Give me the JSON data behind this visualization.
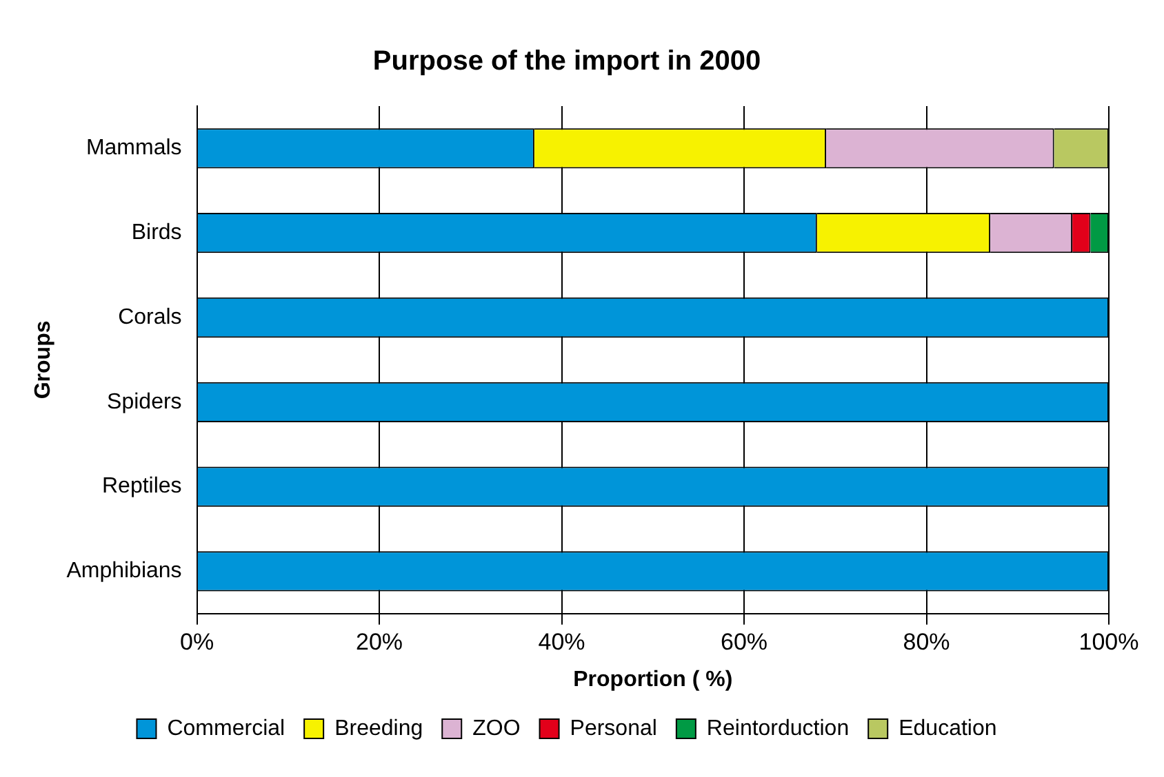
{
  "chart_data": {
    "type": "bar",
    "orientation": "horizontal",
    "stacked": true,
    "title": "Purpose of the import in 2000",
    "xlabel": "Proportion ( %)",
    "ylabel": "Groups",
    "categories": [
      "Mammals",
      "Birds",
      "Corals",
      "Spiders",
      "Reptiles",
      "Amphibians"
    ],
    "series": [
      {
        "name": "Commercial",
        "color": "#0095d9",
        "values": [
          37,
          68,
          100,
          100,
          100,
          100
        ]
      },
      {
        "name": "Breeding",
        "color": "#f7f200",
        "values": [
          32,
          19,
          0,
          0,
          0,
          0
        ]
      },
      {
        "name": "ZOO",
        "color": "#dcb3d3",
        "values": [
          25,
          9,
          0,
          0,
          0,
          0
        ]
      },
      {
        "name": "Personal",
        "color": "#e2001a",
        "values": [
          0,
          2,
          0,
          0,
          0,
          0
        ]
      },
      {
        "name": "Reintorduction",
        "color": "#009a44",
        "values": [
          0,
          2,
          0,
          0,
          0,
          0
        ]
      },
      {
        "name": "Education",
        "color": "#b9c861",
        "values": [
          6,
          0,
          0,
          0,
          0,
          0
        ]
      }
    ],
    "xlim": [
      0,
      100
    ],
    "xticks": [
      {
        "value": 0,
        "label": "0%"
      },
      {
        "value": 20,
        "label": "20%"
      },
      {
        "value": 40,
        "label": "40%"
      },
      {
        "value": 60,
        "label": "60%"
      },
      {
        "value": 80,
        "label": "80%"
      },
      {
        "value": 100,
        "label": "100%"
      }
    ],
    "grid": "x",
    "legend": "bottom"
  }
}
